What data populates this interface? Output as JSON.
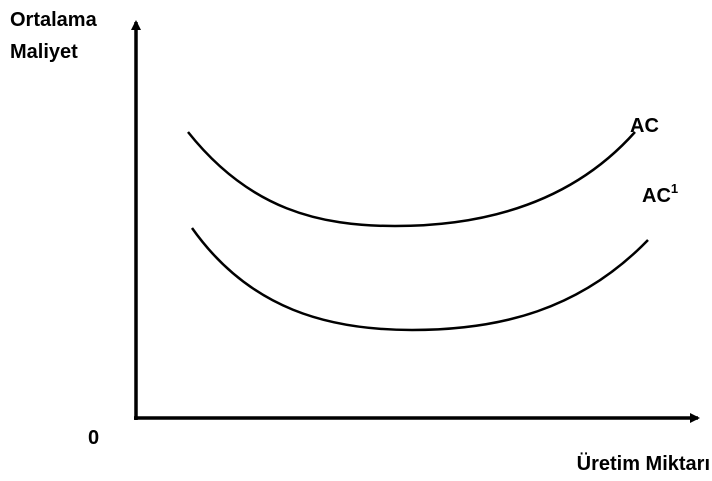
{
  "axes": {
    "y_label": [
      "Ortalama",
      "Maliyet"
    ],
    "x_label": "Üretim Miktarı",
    "origin": "0"
  },
  "curves": [
    {
      "label": "AC"
    },
    {
      "label": "AC",
      "superscript": "1"
    }
  ]
}
